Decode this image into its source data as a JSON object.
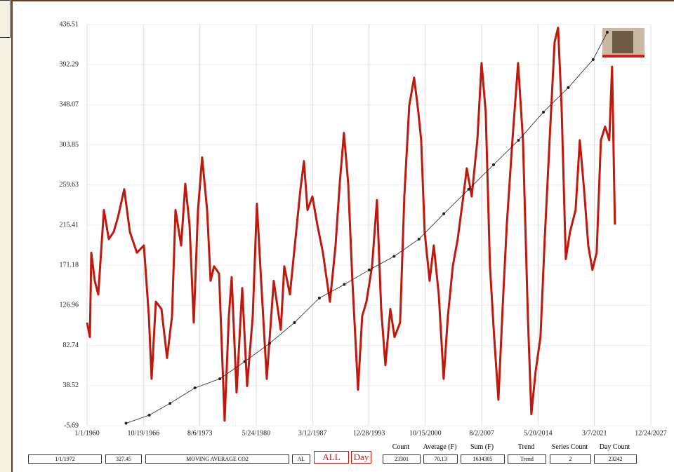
{
  "chart_data": {
    "type": "line",
    "ylim": [
      -5.69,
      436.51
    ],
    "yticks": [
      -5.69,
      38.52,
      82.74,
      126.96,
      171.18,
      215.41,
      259.63,
      303.85,
      348.07,
      392.29,
      436.51
    ],
    "xlim": [
      1960,
      2027.95
    ],
    "xticks": [
      {
        "value": 1960,
        "label": "1/1/1960"
      },
      {
        "value": 1966.795,
        "label": "10/19/1966"
      },
      {
        "value": 1973.59,
        "label": "8/6/1973"
      },
      {
        "value": 1980.386,
        "label": "5/24/1980"
      },
      {
        "value": 1987.18,
        "label": "3/12/1987"
      },
      {
        "value": 1993.98,
        "label": "12/28/1993"
      },
      {
        "value": 2000.77,
        "label": "10/15/2000"
      },
      {
        "value": 2007.57,
        "label": "8/2/2007"
      },
      {
        "value": 2014.36,
        "label": "5/20/2014"
      },
      {
        "value": 2021.16,
        "label": "3/7/2021"
      },
      {
        "value": 2027.95,
        "label": "12/24/2027"
      }
    ],
    "grid": true,
    "series": [
      {
        "color": "#c0180c",
        "marker": false,
        "x": [
          1960.0,
          1960.34,
          1960.51,
          1960.93,
          1961.35,
          1962.03,
          1962.62,
          1963.21,
          1963.72,
          1964.48,
          1965.16,
          1966.01,
          1966.85,
          1967.45,
          1967.78,
          1968.29,
          1968.97,
          1969.64,
          1970.24,
          1970.66,
          1971.34,
          1971.84,
          1972.35,
          1972.86,
          1973.37,
          1973.87,
          1974.47,
          1974.89,
          1975.31,
          1975.91,
          1976.58,
          1977.09,
          1977.43,
          1978.02,
          1978.7,
          1979.29,
          1979.97,
          1980.47,
          1980.98,
          1981.66,
          1982.5,
          1983.35,
          1983.77,
          1984.45,
          1985.04,
          1985.72,
          1986.14,
          1986.57,
          1987.16,
          1987.75,
          1988.43,
          1989.27,
          1989.95,
          1990.46,
          1990.96,
          1991.47,
          1991.98,
          1992.66,
          1993.16,
          1993.67,
          1994.35,
          1994.94,
          1995.45,
          1995.96,
          1996.55,
          1997.06,
          1997.73,
          1998.24,
          1998.83,
          1999.42,
          1999.93,
          2000.27,
          2000.69,
          2001.29,
          2001.79,
          2002.39,
          2002.98,
          2003.49,
          2004.08,
          2004.67,
          2005.35,
          2005.77,
          2006.36,
          2007.04,
          2007.55,
          2008.05,
          2008.56,
          2009.07,
          2009.58,
          2010.08,
          2010.59,
          2011.27,
          2011.95,
          2012.54,
          2013.13,
          2013.55,
          2014.06,
          2014.65,
          2015.16,
          2015.75,
          2016.35,
          2016.77,
          2017.19,
          2017.7,
          2018.21,
          2018.88,
          2019.39,
          2019.9,
          2020.41,
          2020.91,
          2021.42,
          2021.93,
          2022.44,
          2022.94,
          2023.28,
          2023.62
        ],
        "values": [
          108,
          92,
          185,
          154,
          139,
          232,
          200,
          208,
          224,
          255,
          208,
          185,
          193,
          115,
          46,
          131,
          123,
          69,
          115,
          232,
          193,
          261,
          216,
          108,
          232,
          290,
          232,
          154,
          170,
          162,
          0,
          115,
          158,
          31,
          146,
          38,
          115,
          239,
          154,
          46,
          154,
          100,
          170,
          139,
          193,
          255,
          286,
          232,
          247,
          216,
          185,
          131,
          193,
          262,
          317,
          262,
          154,
          34,
          115,
          131,
          170,
          243,
          123,
          61,
          123,
          92,
          108,
          247,
          347,
          378,
          340,
          309,
          208,
          154,
          193,
          139,
          46,
          115,
          170,
          200,
          247,
          278,
          247,
          309,
          394,
          340,
          170,
          92,
          23,
          123,
          216,
          309,
          394,
          309,
          115,
          7,
          54,
          92,
          200,
          309,
          417,
          433,
          347,
          178,
          208,
          232,
          309,
          255,
          193,
          166,
          185,
          309,
          324,
          309,
          390,
          216
        ]
      },
      {
        "color": "#222222",
        "marker": true,
        "x": [
          1964.7,
          1967.5,
          1970,
          1973,
          1976,
          1979,
          1982,
          1985,
          1988,
          1991,
          1994,
          1997,
          2000,
          2003,
          2006,
          2009,
          2012,
          2015,
          2018,
          2021,
          2022.7
        ],
        "values": [
          -3,
          6,
          19,
          36,
          46,
          65,
          85,
          108,
          135,
          150,
          166,
          181,
          200,
          228,
          255,
          282,
          309,
          340,
          367,
          398,
          428
        ]
      }
    ]
  },
  "toolbar": {
    "date": "1/1/1972",
    "value": 327.45,
    "series": "MOVING AVERAGE CO2",
    "al": "AL",
    "all": "ALL",
    "day": "Day",
    "stats": [
      {
        "label": "Count",
        "value": 23301
      },
      {
        "label": "Average (F)",
        "value": 70.13
      },
      {
        "label": "Sum (F)",
        "value": 1634305
      },
      {
        "label": "Trend",
        "value": "Trend"
      },
      {
        "label": "Series Count",
        "value": 2
      },
      {
        "label": "Day Count",
        "value": 23242
      }
    ]
  }
}
